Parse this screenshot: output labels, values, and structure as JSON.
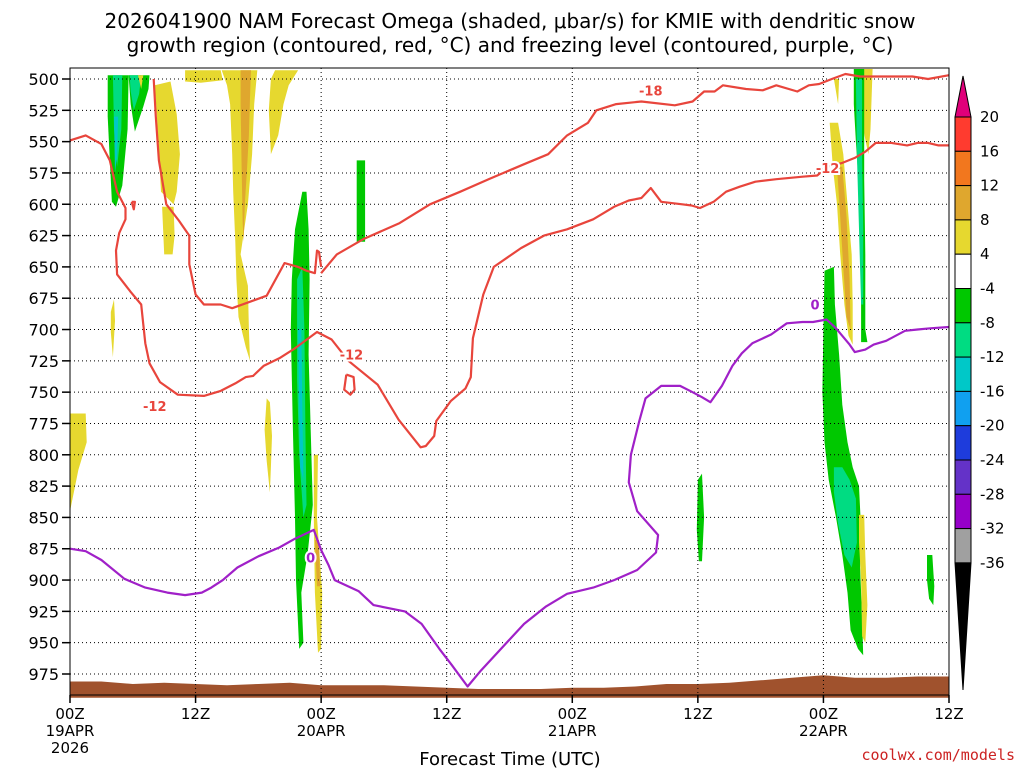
{
  "chart_data": {
    "type": "time-height contour",
    "title_line1": "2026041900 NAM Forecast Omega (shaded, μbar/s) for KMIE with dendritic snow",
    "title_line2": "growth region (contoured, red, °C) and freezing level (contoured, purple, °C)",
    "xlabel": "Forecast Time (UTC)",
    "credit": "coolwx.com/models",
    "xlim_hours": [
      0,
      84
    ],
    "ylim_mb": [
      500,
      990
    ],
    "y_ticks": [
      500,
      525,
      550,
      575,
      600,
      625,
      650,
      675,
      700,
      725,
      750,
      775,
      800,
      825,
      850,
      875,
      900,
      925,
      950,
      975
    ],
    "x_ticks": [
      {
        "h": 0,
        "l1": "00Z",
        "l2": "19APR",
        "l3": "2026"
      },
      {
        "h": 12,
        "l1": "12Z",
        "l2": "",
        "l3": ""
      },
      {
        "h": 24,
        "l1": "00Z",
        "l2": "20APR",
        "l3": ""
      },
      {
        "h": 36,
        "l1": "12Z",
        "l2": "",
        "l3": ""
      },
      {
        "h": 48,
        "l1": "00Z",
        "l2": "21APR",
        "l3": ""
      },
      {
        "h": 60,
        "l1": "12Z",
        "l2": "",
        "l3": ""
      },
      {
        "h": 72,
        "l1": "00Z",
        "l2": "22APR",
        "l3": ""
      },
      {
        "h": 84,
        "l1": "12Z",
        "l2": "",
        "l3": ""
      }
    ],
    "colorbar": {
      "labels": [
        "20",
        "16",
        "12",
        "8",
        "4",
        "-4",
        "-8",
        "-12",
        "-16",
        "-20",
        "-24",
        "-28",
        "-32",
        "-36"
      ],
      "colors": [
        "#ff3b2f",
        "#f2771e",
        "#dfa72e",
        "#e6d82f",
        "#ffffff",
        "#00c800",
        "#00dc82",
        "#00c8c8",
        "#10a0f0",
        "#1e3cdc",
        "#6432c8",
        "#9600c8",
        "#a0a0a0"
      ],
      "top_arrow_color": "#e0007a",
      "bottom_arrow_color": "#000000"
    },
    "contour_labels": [
      {
        "text": "-18",
        "h": 55.5,
        "p": 509,
        "color": "#e8453c"
      },
      {
        "text": "-12",
        "h": 72.4,
        "p": 571,
        "color": "#e8453c"
      },
      {
        "text": "-12",
        "h": 26.9,
        "p": 720,
        "color": "#e8453c"
      },
      {
        "text": "-12",
        "h": 8.1,
        "p": 761,
        "color": "#e8453c"
      },
      {
        "text": "0",
        "h": 71.2,
        "p": 680,
        "color": "#a020c8"
      },
      {
        "text": "0",
        "h": 23.0,
        "p": 882,
        "color": "#a020c8"
      }
    ],
    "red_contours": [
      [
        [
          0,
          549
        ],
        [
          1.5,
          545
        ],
        [
          3,
          552
        ],
        [
          3.8,
          565
        ],
        [
          4.5,
          590
        ],
        [
          5.3,
          603
        ],
        [
          5.3,
          612
        ],
        [
          4.7,
          623
        ],
        [
          4.4,
          637
        ],
        [
          4.5,
          656
        ],
        [
          5.8,
          670
        ],
        [
          6.8,
          680
        ],
        [
          7,
          696
        ],
        [
          7.2,
          711
        ],
        [
          7.6,
          727
        ],
        [
          8.6,
          742
        ],
        [
          10.3,
          752
        ],
        [
          12.8,
          753
        ],
        [
          14.4,
          749
        ],
        [
          15.8,
          743
        ],
        [
          16.8,
          738
        ],
        [
          17.5,
          737
        ],
        [
          18.5,
          729
        ],
        [
          20,
          723
        ],
        [
          21.5,
          715
        ],
        [
          23.6,
          702
        ],
        [
          25,
          708
        ],
        [
          26.6,
          725
        ],
        [
          29.4,
          744
        ],
        [
          31.4,
          772
        ],
        [
          33.5,
          794
        ],
        [
          34,
          793
        ],
        [
          34.8,
          785
        ],
        [
          35,
          773
        ],
        [
          36.4,
          757
        ],
        [
          37.8,
          747
        ],
        [
          38.3,
          738
        ],
        [
          38.5,
          707
        ],
        [
          39.5,
          672
        ],
        [
          40.5,
          650
        ],
        [
          43.1,
          635
        ],
        [
          45.3,
          625
        ],
        [
          47.5,
          620
        ],
        [
          50,
          612
        ],
        [
          52,
          602
        ],
        [
          53.4,
          597
        ],
        [
          54.6,
          595
        ],
        [
          55.5,
          587
        ],
        [
          56.5,
          598
        ],
        [
          58.5,
          600
        ],
        [
          59.4,
          601
        ],
        [
          60.2,
          603
        ],
        [
          61.5,
          598
        ],
        [
          62.7,
          590
        ],
        [
          64,
          586
        ],
        [
          65.5,
          582
        ],
        [
          67.5,
          580
        ],
        [
          70,
          578
        ],
        [
          71.4,
          577
        ],
        [
          72.4,
          570
        ],
        [
          73.8,
          567
        ],
        [
          75,
          563
        ],
        [
          76,
          558
        ],
        [
          77,
          551
        ],
        [
          78.5,
          551
        ],
        [
          80,
          553
        ],
        [
          81,
          551
        ],
        [
          82,
          551
        ],
        [
          83,
          553
        ],
        [
          84,
          553
        ]
      ],
      [
        [
          24,
          650
        ],
        [
          23.8,
          638
        ],
        [
          23.6,
          637
        ],
        [
          23.4,
          655
        ],
        [
          22.6,
          653
        ],
        [
          21.8,
          650
        ],
        [
          20.5,
          647
        ],
        [
          18.8,
          673
        ],
        [
          15.5,
          683
        ],
        [
          14.4,
          680
        ],
        [
          12.8,
          680
        ],
        [
          12,
          672
        ],
        [
          11.4,
          648
        ],
        [
          11.4,
          625
        ],
        [
          10.4,
          613
        ],
        [
          9.2,
          600
        ],
        [
          8.5,
          565
        ],
        [
          8.2,
          530
        ],
        [
          8.0,
          500
        ]
      ],
      [
        [
          24,
          655
        ],
        [
          25.5,
          640
        ],
        [
          28,
          628
        ],
        [
          31.5,
          615
        ],
        [
          34.4,
          600
        ],
        [
          37.3,
          590
        ],
        [
          40,
          580
        ],
        [
          43.4,
          568
        ],
        [
          45.7,
          560
        ],
        [
          47.5,
          545
        ],
        [
          49.5,
          535
        ],
        [
          50.3,
          525
        ],
        [
          52.2,
          520
        ],
        [
          54.6,
          518
        ],
        [
          57.8,
          521
        ],
        [
          59.5,
          518
        ],
        [
          60.6,
          510
        ],
        [
          61.6,
          510
        ],
        [
          62.4,
          505
        ],
        [
          64.6,
          508
        ],
        [
          66.2,
          509
        ],
        [
          67.5,
          505
        ],
        [
          69.5,
          510
        ],
        [
          70.6,
          505
        ],
        [
          71.6,
          504
        ],
        [
          72.8,
          500
        ],
        [
          74.1,
          496
        ],
        [
          75.5,
          498
        ],
        [
          78,
          498
        ],
        [
          80.5,
          498
        ],
        [
          82,
          500
        ],
        [
          84,
          497
        ]
      ],
      [
        [
          26.4,
          736
        ],
        [
          26.2,
          748
        ],
        [
          26.8,
          752
        ],
        [
          27.2,
          748
        ],
        [
          27.1,
          738
        ],
        [
          26.4,
          736
        ]
      ],
      [
        [
          5.9,
          598
        ],
        [
          6.1,
          604
        ],
        [
          6.2,
          598
        ],
        [
          5.9,
          598
        ]
      ]
    ],
    "purple_contours": [
      [
        [
          0,
          875
        ],
        [
          1.5,
          877
        ],
        [
          3,
          884
        ],
        [
          5.2,
          899
        ],
        [
          7.2,
          906
        ],
        [
          9.3,
          910
        ],
        [
          11,
          912
        ],
        [
          12.6,
          910
        ],
        [
          13.5,
          906
        ],
        [
          14.6,
          900
        ],
        [
          16,
          890
        ],
        [
          18,
          881
        ],
        [
          20,
          874
        ],
        [
          21.5,
          867
        ],
        [
          23.3,
          860
        ],
        [
          24,
          876
        ],
        [
          24.7,
          888
        ],
        [
          25.3,
          900
        ],
        [
          27.6,
          909
        ],
        [
          29,
          920
        ],
        [
          32,
          925
        ],
        [
          33.6,
          935
        ],
        [
          35.3,
          955
        ],
        [
          36.5,
          968
        ],
        [
          38,
          985
        ],
        [
          39.3,
          972
        ],
        [
          41.5,
          952
        ],
        [
          43.4,
          935
        ],
        [
          45.5,
          921
        ],
        [
          47.5,
          911
        ],
        [
          50,
          906
        ],
        [
          52,
          900
        ],
        [
          54.2,
          892
        ],
        [
          56,
          878
        ],
        [
          56.2,
          864
        ],
        [
          54.2,
          845
        ],
        [
          53.4,
          822
        ],
        [
          53.6,
          800
        ],
        [
          54.4,
          773
        ],
        [
          55,
          755
        ],
        [
          56.5,
          745
        ],
        [
          58.3,
          745
        ],
        [
          59.5,
          750
        ],
        [
          60.4,
          754
        ],
        [
          61.2,
          758
        ],
        [
          62.3,
          745
        ],
        [
          63.3,
          729
        ],
        [
          64.2,
          719
        ],
        [
          65.2,
          711
        ],
        [
          67,
          704
        ],
        [
          68.5,
          695
        ],
        [
          70,
          694
        ],
        [
          71,
          694
        ],
        [
          72.3,
          692
        ],
        [
          73.2,
          699
        ],
        [
          74.5,
          712
        ],
        [
          75,
          718
        ],
        [
          76,
          716
        ],
        [
          76.8,
          712
        ],
        [
          78,
          709
        ],
        [
          79.8,
          701
        ],
        [
          81,
          700
        ],
        [
          82.2,
          699
        ],
        [
          84,
          698
        ]
      ]
    ]
  }
}
